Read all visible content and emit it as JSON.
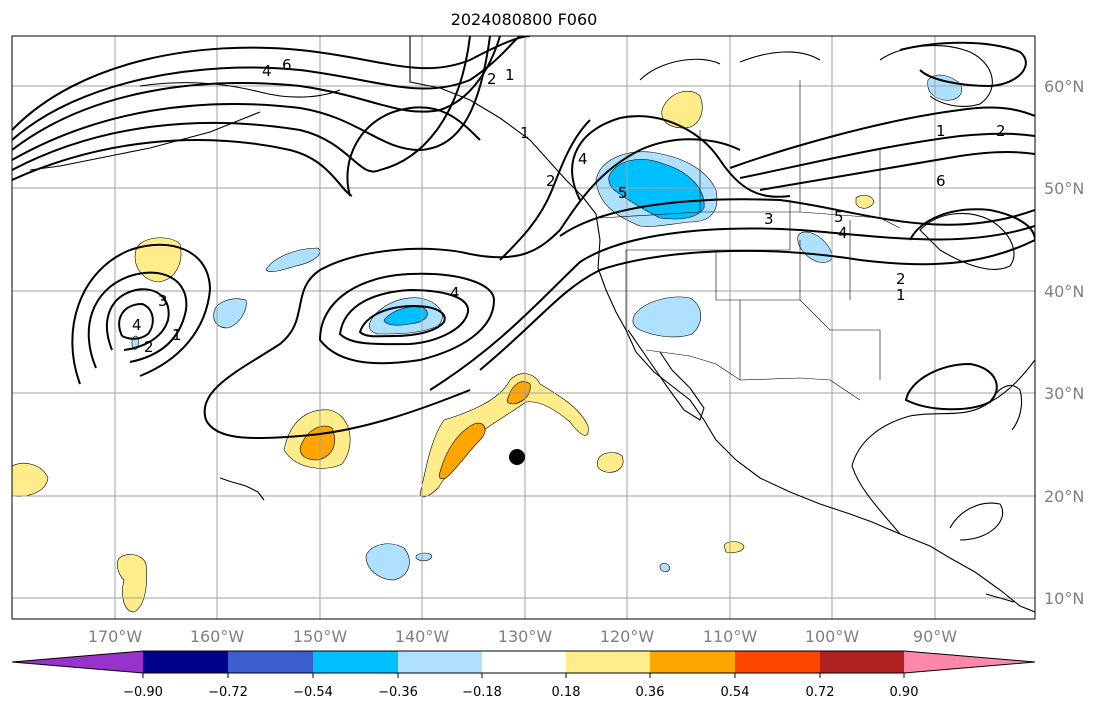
{
  "title": "2024080800 F060",
  "map": {
    "lat_labels": [
      "60°N",
      "50°N",
      "40°N",
      "30°N",
      "20°N",
      "10°N"
    ],
    "lon_labels": [
      "170°W",
      "160°W",
      "150°W",
      "140°W",
      "130°W",
      "120°W",
      "110°W",
      "100°W",
      "90°W"
    ],
    "contour_labels": [
      "6",
      "4",
      "2",
      "1",
      "2",
      "1",
      "4",
      "5",
      "6",
      "1",
      "2",
      "5",
      "4",
      "3",
      "2",
      "1",
      "3",
      "4",
      "4",
      "2",
      "1"
    ],
    "colors": {
      "land_line": "#000000",
      "grid": "#a0a0a0",
      "contour": "#000000",
      "marker": "#000000"
    }
  },
  "colorbar": {
    "tick_labels": [
      "−0.90",
      "−0.72",
      "−0.54",
      "−0.36",
      "−0.18",
      "0.18",
      "0.36",
      "0.54",
      "0.72",
      "0.90"
    ],
    "colors": [
      "#9932cc",
      "#00008b",
      "#3a5fcd",
      "#00bfff",
      "#aee0ff",
      "#ffffff",
      "#ffec8b",
      "#ffa500",
      "#ff4500",
      "#b22222",
      "#ff88aa"
    ]
  }
}
